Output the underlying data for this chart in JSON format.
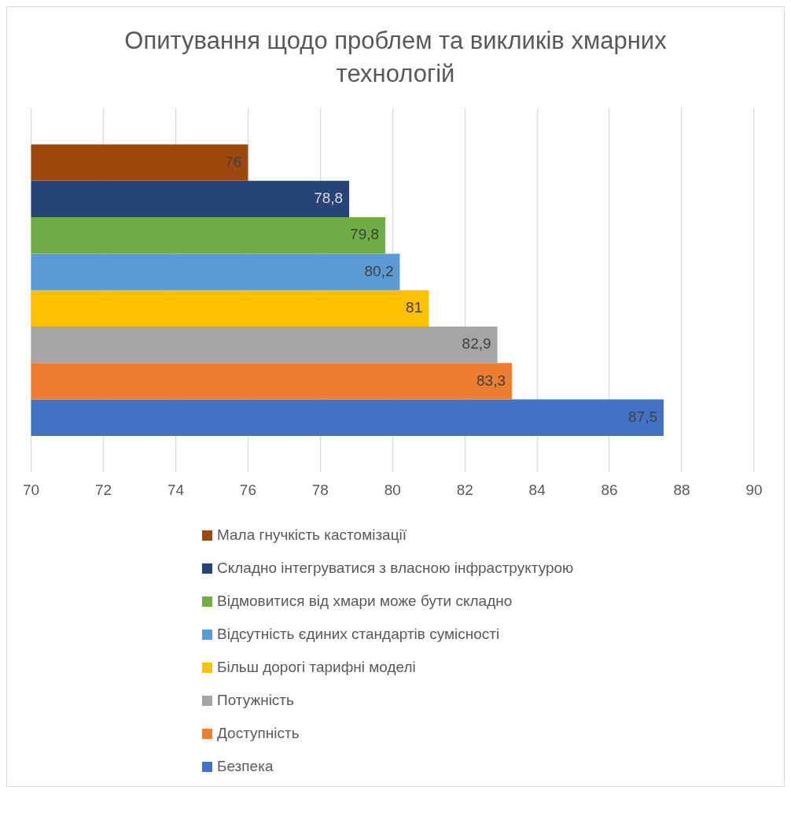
{
  "chart_data": {
    "type": "bar",
    "orientation": "horizontal",
    "title": "Опитування щодо проблем та викликів хмарних технологій",
    "categories": [
      null
    ],
    "series": [
      {
        "name": "Мала гнучкість кастомізації",
        "color": "#9e480e",
        "values": [
          76
        ],
        "value_labels": [
          "76"
        ]
      },
      {
        "name": "Складно інтегруватися з власною інфраструктурою",
        "color": "#264478",
        "values": [
          78.8
        ],
        "value_labels": [
          "78,8"
        ]
      },
      {
        "name": "Відмовитися від хмари може бути складно",
        "color": "#70ad47",
        "values": [
          79.8
        ],
        "value_labels": [
          "79,8"
        ]
      },
      {
        "name": "Відсутність єдиних стандартів сумісності",
        "color": "#5b9bd5",
        "values": [
          80.2
        ],
        "value_labels": [
          "80,2"
        ]
      },
      {
        "name": "Більш дорогі тарифні моделі",
        "color": "#ffc000",
        "values": [
          81
        ],
        "value_labels": [
          "81"
        ]
      },
      {
        "name": "Потужність",
        "color": "#a5a5a5",
        "values": [
          82.9
        ],
        "value_labels": [
          "82,9"
        ]
      },
      {
        "name": "Доступність",
        "color": "#ed7d31",
        "values": [
          83.3
        ],
        "value_labels": [
          "83,3"
        ]
      },
      {
        "name": "Безпека",
        "color": "#4472c4",
        "values": [
          87.5
        ],
        "value_labels": [
          "87,5"
        ]
      }
    ],
    "xlim": [
      70,
      90
    ],
    "xticks": [
      70,
      72,
      74,
      76,
      78,
      80,
      82,
      84,
      86,
      88,
      90
    ],
    "grid": "x",
    "legend": "bottom"
  }
}
